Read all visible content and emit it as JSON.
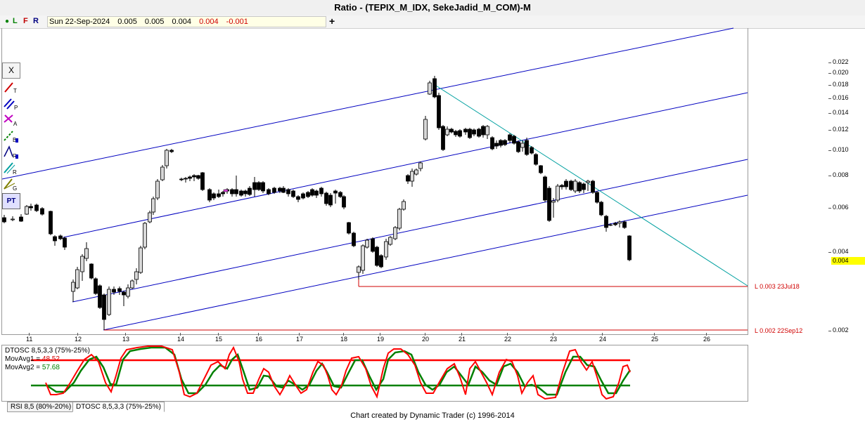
{
  "window": {
    "title": "Ratio - (TEPIX_M_IDX, SekeJadid_M_COM)-M"
  },
  "toolbar": {
    "letters": [
      {
        "text": "L",
        "color": "#008000"
      },
      {
        "text": "F",
        "color": "#c00000"
      },
      {
        "text": "R",
        "color": "#000080"
      }
    ],
    "date": "Sun 22-Sep-2024",
    "open": "0.005",
    "high": "0.005",
    "low": "0.004",
    "close": "0.004",
    "change": "-0.001",
    "plus_label": "+"
  },
  "tools": [
    {
      "name": "tool-x",
      "label": "X"
    },
    {
      "name": "tool-trendline",
      "label": "T"
    },
    {
      "name": "tool-parallel",
      "label": "P"
    },
    {
      "name": "tool-andrews",
      "label": "A"
    },
    {
      "name": "tool-b",
      "label": "B"
    },
    {
      "name": "tool-r1",
      "label": "R"
    },
    {
      "name": "tool-r2",
      "label": "R"
    },
    {
      "name": "tool-g",
      "label": "G"
    },
    {
      "name": "tool-pt",
      "label": "PT"
    }
  ],
  "price_axis": {
    "labels": [
      "0.022",
      "0.020",
      "0.018",
      "0.016",
      "0.014",
      "0.012",
      "0.010",
      "0.008",
      "0.006",
      "0.004",
      "0.002"
    ],
    "current": "0.004"
  },
  "chart_data": {
    "type": "candlestick",
    "title": "Ratio - (TEPIX_M_IDX, SekeJadid_M_COM)-M",
    "x_axis_labels": [
      "11",
      "12",
      "13",
      "14",
      "15",
      "16",
      "17",
      "18",
      "19",
      "20",
      "21",
      "22",
      "23",
      "24",
      "25",
      "26"
    ],
    "y_axis_labels": [
      "0.022",
      "0.020",
      "0.018",
      "0.016",
      "0.014",
      "0.012",
      "0.010",
      "0.008",
      "0.006",
      "0.004",
      "0.002"
    ],
    "y_scale": "log",
    "ylim": [
      0.002,
      0.0225
    ],
    "annotations": [
      {
        "text": "L 0.003 23Jul18",
        "value": 0.0031
      },
      {
        "text": "L 0.002 22Sep12",
        "value": 0.0021
      }
    ],
    "last_bar": {
      "date": "Sun 22-Sep-2024",
      "open": 0.005,
      "high": 0.005,
      "low": 0.004,
      "close": 0.004,
      "change": -0.001
    }
  },
  "oscillator": {
    "title": "DTOSC 8,5,3,3 (75%-25%)",
    "mov1_label": "MovAvg1 =",
    "mov1_value": "48.52",
    "mov2_label": "MovAvg2 =",
    "mov2_value": "57.68",
    "upper_level": 75,
    "lower_level": 25,
    "colors": {
      "avg1": "#ff0000",
      "avg2": "#008000"
    }
  },
  "tabs": [
    "RSI 8,5 (80%-20%)",
    "DTOSC 8,5,3,3 (75%-25%)"
  ],
  "footer": "Chart created by Dynamic Trader  (c) 1996-2014"
}
